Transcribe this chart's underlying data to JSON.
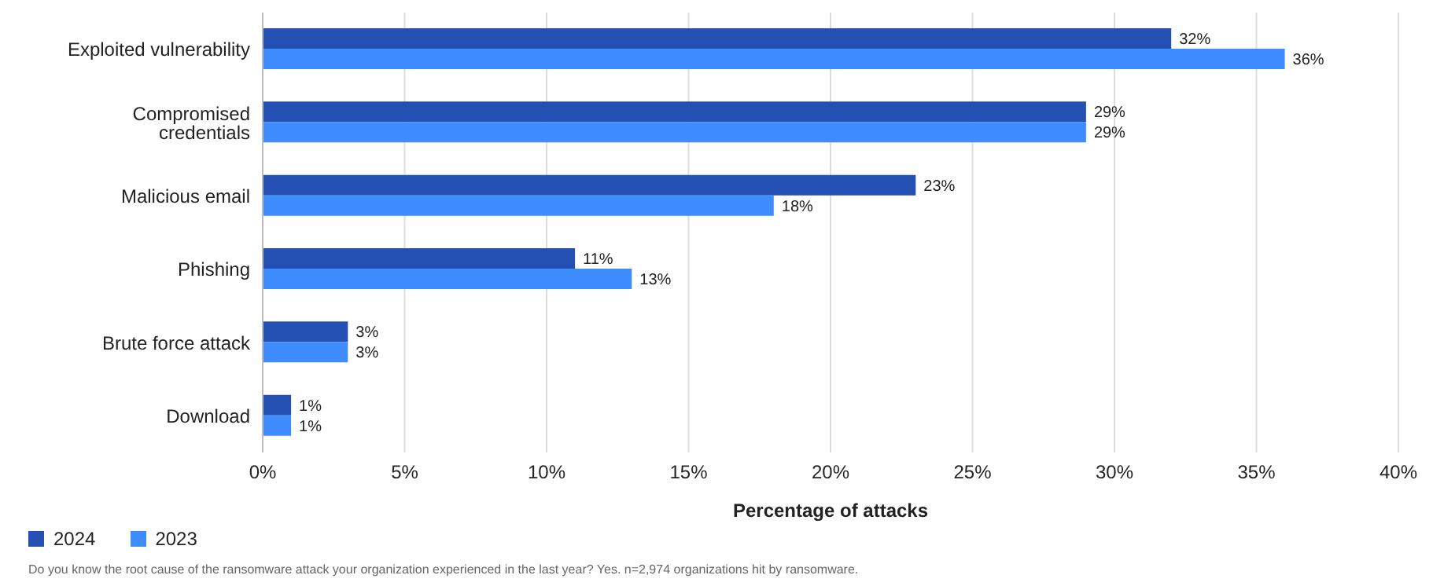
{
  "chart_data": {
    "type": "bar",
    "orientation": "horizontal",
    "categories": [
      "Exploited vulnerability",
      "Compromised credentials",
      "Malicious email",
      "Phishing",
      "Brute force attack",
      "Download"
    ],
    "series": [
      {
        "name": "2024",
        "color": "#2450b4",
        "values": [
          32,
          29,
          23,
          11,
          3,
          1
        ],
        "value_labels": [
          "32%",
          "29%",
          "23%",
          "11%",
          "3%",
          "1%"
        ]
      },
      {
        "name": "2023",
        "color": "#3f8cff",
        "values": [
          36,
          29,
          18,
          13,
          3,
          1
        ],
        "value_labels": [
          "36%",
          "29%",
          "18%",
          "13%",
          "3%",
          "1%"
        ]
      }
    ],
    "xlim": [
      0,
      40
    ],
    "xticks": [
      {
        "value": 0,
        "label": "0%"
      },
      {
        "value": 5,
        "label": "5%"
      },
      {
        "value": 10,
        "label": "10%"
      },
      {
        "value": 15,
        "label": "15%"
      },
      {
        "value": 20,
        "label": "20%"
      },
      {
        "value": 25,
        "label": "25%"
      },
      {
        "value": 30,
        "label": "30%"
      },
      {
        "value": 35,
        "label": "35%"
      },
      {
        "value": 40,
        "label": "40%"
      }
    ],
    "xlabel": "Percentage of attacks",
    "grid": "x",
    "legend": "bottom left",
    "annotations": [
      "Do you know the root cause of the ransomware attack your organization experienced in the last year? Yes.  n=2,974 organizations hit by ransomware."
    ]
  }
}
